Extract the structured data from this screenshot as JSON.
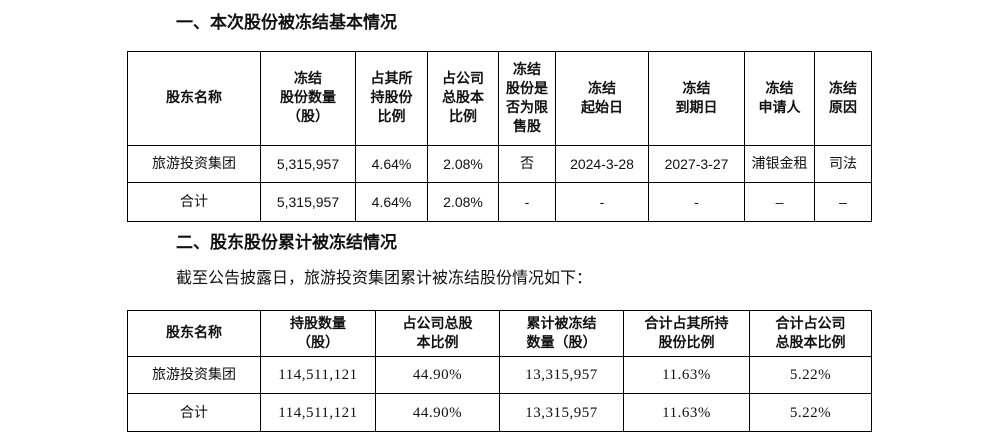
{
  "section1": {
    "title": "一、本次股份被冻结基本情况",
    "headers": [
      [
        "股东名称"
      ],
      [
        "冻结",
        "股份数量",
        "（股）"
      ],
      [
        "占其所",
        "持股份",
        "比例"
      ],
      [
        "占公司",
        "总股本",
        "比例"
      ],
      [
        "冻结",
        "股份是",
        "否为限",
        "售股"
      ],
      [
        "冻结",
        "起始日"
      ],
      [
        "冻结",
        "到期日"
      ],
      [
        "冻结",
        "申请人"
      ],
      [
        "冻结",
        "原因"
      ]
    ],
    "rows": [
      [
        "旅游投资集团",
        "5,315,957",
        "4.64%",
        "2.08%",
        "否",
        "2024-3-28",
        "2027-3-27",
        "浦银金租",
        "司法"
      ],
      [
        "合计",
        "5,315,957",
        "4.64%",
        "2.08%",
        "-",
        "-",
        "-",
        "–",
        "–"
      ]
    ]
  },
  "section2": {
    "title": "二、股东股份累计被冻结情况",
    "intro": "截至公告披露日，旅游投资集团累计被冻结股份情况如下：",
    "headers": [
      [
        "股东名称"
      ],
      [
        "持股数量",
        "（股）"
      ],
      [
        "占公司总股",
        "本比例"
      ],
      [
        "累计被冻结",
        "数量（股）"
      ],
      [
        "合计占其所持",
        "股份比例"
      ],
      [
        "合计占公司",
        "总股本比例"
      ]
    ],
    "rows": [
      [
        "旅游投资集团",
        "114,511,121",
        "44.90%",
        "13,315,957",
        "11.63%",
        "5.22%"
      ],
      [
        "合计",
        "114,511,121",
        "44.90%",
        "13,315,957",
        "11.63%",
        "5.22%"
      ]
    ]
  }
}
